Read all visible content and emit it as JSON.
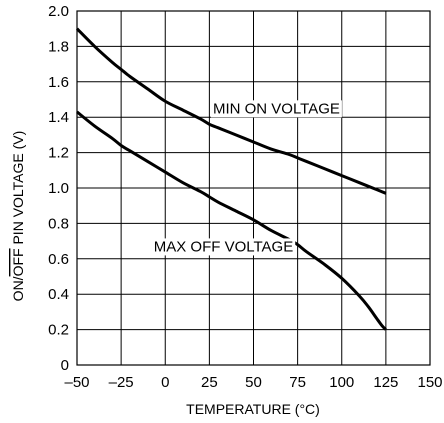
{
  "chart_data": {
    "type": "line",
    "xlabel": "TEMPERATURE (°C)",
    "ylabel_pre": "ON/",
    "ylabel_over": "OFF",
    "ylabel_post": " PIN VOLTAGE (V)",
    "xlim": [
      -50,
      150
    ],
    "ylim": [
      0,
      2.0
    ],
    "xticks": [
      -50,
      -25,
      0,
      25,
      50,
      75,
      100,
      125,
      150
    ],
    "xtick_labels": [
      "–50",
      "–25",
      "0",
      "25",
      "50",
      "75",
      "100",
      "125",
      "150"
    ],
    "yticks": [
      0,
      0.2,
      0.4,
      0.6,
      0.8,
      1.0,
      1.2,
      1.4,
      1.6,
      1.8,
      2.0
    ],
    "ytick_labels": [
      "0",
      "0.2",
      "0.4",
      "0.6",
      "0.8",
      "1.0",
      "1.2",
      "1.4",
      "1.6",
      "1.8",
      "2.0"
    ],
    "grid": true,
    "series": [
      {
        "name": "MIN ON VOLTAGE",
        "x": [
          -50,
          -40,
          -30,
          -25,
          -20,
          -10,
          0,
          10,
          20,
          25,
          30,
          40,
          50,
          60,
          70,
          75,
          80,
          90,
          100,
          110,
          120,
          125
        ],
        "y": [
          1.9,
          1.8,
          1.71,
          1.67,
          1.63,
          1.56,
          1.49,
          1.44,
          1.39,
          1.36,
          1.34,
          1.3,
          1.26,
          1.22,
          1.19,
          1.17,
          1.15,
          1.11,
          1.07,
          1.03,
          0.99,
          0.97
        ]
      },
      {
        "name": "MAX OFF VOLTAGE",
        "x": [
          -50,
          -40,
          -30,
          -25,
          -20,
          -10,
          0,
          10,
          20,
          25,
          30,
          40,
          50,
          60,
          70,
          75,
          80,
          90,
          100,
          110,
          115,
          120,
          123,
          125
        ],
        "y": [
          1.43,
          1.35,
          1.28,
          1.24,
          1.21,
          1.15,
          1.09,
          1.03,
          0.98,
          0.95,
          0.92,
          0.87,
          0.82,
          0.76,
          0.71,
          0.68,
          0.64,
          0.57,
          0.49,
          0.39,
          0.33,
          0.26,
          0.22,
          0.2
        ]
      }
    ],
    "annotations": [
      {
        "text": "MIN ON VOLTAGE",
        "x": 63,
        "y": 1.45
      },
      {
        "text": "MAX OFF VOLTAGE",
        "x": 33,
        "y": 0.67
      }
    ]
  }
}
